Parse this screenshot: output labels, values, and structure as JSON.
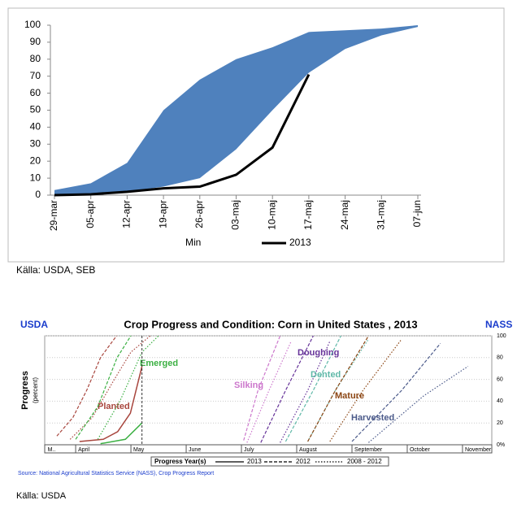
{
  "chart_data": [
    {
      "type": "band",
      "categories": [
        "29-mar",
        "05-apr",
        "12-apr",
        "19-apr",
        "26-apr",
        "03-maj",
        "10-maj",
        "17-maj",
        "24-maj",
        "31-maj",
        "07-jun"
      ],
      "series": [
        {
          "color": "#4f81bd",
          "values": [
            3,
            7,
            19,
            50,
            68,
            80,
            87,
            96,
            97,
            98,
            100
          ]
        },
        {
          "name": "Min",
          "color": "#ffffff",
          "values": [
            0,
            0,
            2,
            5,
            10,
            27,
            50,
            72,
            86,
            94,
            99
          ]
        },
        {
          "name": "2013",
          "color": "#000000",
          "values": [
            0,
            0.5,
            2,
            4,
            5,
            12,
            28,
            71,
            null,
            null,
            null
          ]
        }
      ],
      "ylim": [
        0,
        100
      ],
      "yticks": [
        0,
        10,
        20,
        30,
        40,
        50,
        60,
        70,
        80,
        90,
        100
      ],
      "grid": false,
      "caption": "Källa: USDA, SEB"
    },
    {
      "type": "line",
      "title": "Crop Progress and Condition: Corn in United States , 2013",
      "agency_left": "USDA",
      "agency_right": "NASS",
      "ylabel": "Progress",
      "ylabel_sub": "(percent)",
      "xlim": [
        3.44,
        11.53
      ],
      "xticks": [
        {
          "value": 3.45,
          "label": "M.."
        },
        {
          "value": 4,
          "label": "April"
        },
        {
          "value": 5,
          "label": "May"
        },
        {
          "value": 6,
          "label": "June"
        },
        {
          "value": 7,
          "label": "July"
        },
        {
          "value": 8,
          "label": "August"
        },
        {
          "value": 9,
          "label": "September"
        },
        {
          "value": 10,
          "label": "October"
        },
        {
          "value": 11,
          "label": "November"
        }
      ],
      "ylim": [
        0,
        100
      ],
      "yticks": [
        {
          "value": 0,
          "label": "0%"
        },
        20,
        40,
        60,
        80,
        100
      ],
      "grid": true,
      "week_line": 5.2,
      "stages": [
        {
          "label": "Planted",
          "color": "#a8463e",
          "lines": [
            {
              "style": "solid",
              "x": [
                4.07,
                4.5,
                4.76,
                4.99,
                5.2
              ],
              "values": [
                3,
                5,
                12,
                29,
                72
              ]
            },
            {
              "style": "dashed",
              "x": [
                3.66,
                3.95,
                4.2,
                4.45,
                4.74
              ],
              "values": [
                8,
                25,
                50,
                80,
                100
              ]
            },
            {
              "style": "dotted",
              "x": [
                3.9,
                4.3,
                4.7,
                5.0,
                5.35
              ],
              "values": [
                5,
                25,
                60,
                85,
                100
              ]
            }
          ]
        },
        {
          "label": "Emerged",
          "color": "#3cb043",
          "lines": [
            {
              "style": "solid",
              "x": [
                4.45,
                4.9,
                5.2
              ],
              "values": [
                1,
                5,
                20
              ]
            },
            {
              "style": "dashed",
              "x": [
                4.0,
                4.4,
                4.75,
                5.0
              ],
              "values": [
                5,
                35,
                80,
                100
              ]
            },
            {
              "style": "dotted",
              "x": [
                4.4,
                4.8,
                5.2,
                5.5
              ],
              "values": [
                5,
                40,
                85,
                100
              ]
            }
          ]
        },
        {
          "label": "Silking",
          "color": "#cc77cc",
          "lines": [
            {
              "style": "dashed",
              "x": [
                7.04,
                7.3,
                7.7
              ],
              "values": [
                4,
                50,
                100
              ]
            },
            {
              "style": "dotted",
              "x": [
                7.1,
                7.5,
                7.9
              ],
              "values": [
                2,
                50,
                95
              ]
            }
          ]
        },
        {
          "label": "Doughing",
          "color": "#663399",
          "lines": [
            {
              "style": "dashed",
              "x": [
                7.35,
                7.8,
                8.3
              ],
              "values": [
                2,
                50,
                100
              ]
            },
            {
              "style": "dotted",
              "x": [
                7.7,
                8.2,
                8.6
              ],
              "values": [
                2,
                50,
                95
              ]
            }
          ]
        },
        {
          "label": "Dented",
          "color": "#5fb8a8",
          "lines": [
            {
              "style": "dashed",
              "x": [
                7.8,
                8.3,
                8.8
              ],
              "values": [
                3,
                50,
                100
              ]
            },
            {
              "style": "dotted",
              "x": [
                8.2,
                8.7,
                9.3
              ],
              "values": [
                3,
                50,
                97
              ]
            }
          ]
        },
        {
          "label": "Mature",
          "color": "#8b4513",
          "lines": [
            {
              "style": "dashed",
              "x": [
                8.2,
                8.7,
                9.3
              ],
              "values": [
                3,
                50,
                100
              ]
            },
            {
              "style": "dotted",
              "x": [
                8.6,
                9.2,
                9.9
              ],
              "values": [
                3,
                50,
                97
              ]
            }
          ]
        },
        {
          "label": "Harvested",
          "color": "#4b5a8a",
          "lines": [
            {
              "style": "dashed",
              "x": [
                9.0,
                9.9,
                10.6
              ],
              "values": [
                3,
                50,
                93
              ]
            },
            {
              "style": "dotted",
              "x": [
                9.3,
                10.3,
                11.1
              ],
              "values": [
                2,
                45,
                72
              ]
            }
          ]
        }
      ],
      "legend_title": "Progress Year(s)",
      "legend": [
        {
          "name": "2013",
          "style": "solid"
        },
        {
          "name": "2012",
          "style": "dashed"
        },
        {
          "name": "2008 - 2012",
          "style": "dotted"
        }
      ],
      "source_note": "Source: National Agricultural Statistics Service (NASS), Crop Progress Report",
      "caption": "Källa: USDA"
    }
  ]
}
